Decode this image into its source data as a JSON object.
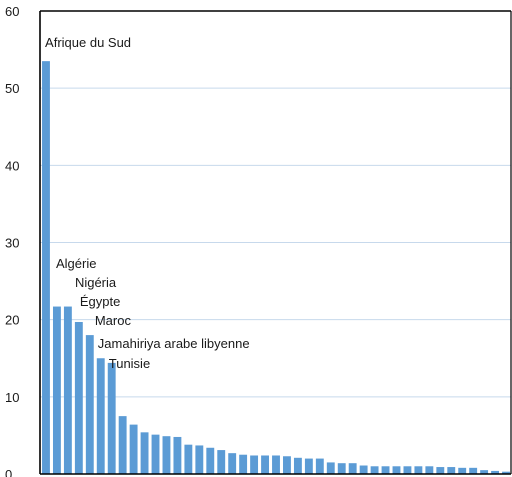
{
  "chart_data": {
    "type": "bar",
    "title": "",
    "xlabel": "",
    "ylabel": "",
    "ylim": [
      0,
      60
    ],
    "yticks": [
      0,
      10,
      20,
      30,
      40,
      50,
      60
    ],
    "grid": true,
    "bar_color": "#5b9bd5",
    "grid_color": "#c7d9ec",
    "values": [
      53.5,
      21.7,
      21.7,
      19.7,
      18.0,
      15.0,
      14.4,
      7.5,
      6.4,
      5.4,
      5.1,
      4.9,
      4.8,
      3.8,
      3.7,
      3.4,
      3.1,
      2.7,
      2.5,
      2.4,
      2.4,
      2.4,
      2.3,
      2.1,
      2.0,
      2.0,
      1.5,
      1.4,
      1.4,
      1.1,
      1.0,
      1.0,
      1.0,
      1.0,
      1.0,
      1.0,
      0.9,
      0.9,
      0.8,
      0.8,
      0.5,
      0.4,
      0.3
    ],
    "annotations": [
      {
        "bar": 0,
        "label": "Afrique du Sud"
      },
      {
        "bar": 1,
        "label": "Algérie"
      },
      {
        "bar": 2,
        "label": "Nigéria"
      },
      {
        "bar": 3,
        "label": "Égypte"
      },
      {
        "bar": 4,
        "label": "Maroc"
      },
      {
        "bar": 5,
        "label": "Jamahiriya arabe libyenne"
      },
      {
        "bar": 6,
        "label": "Tunisie"
      }
    ]
  }
}
